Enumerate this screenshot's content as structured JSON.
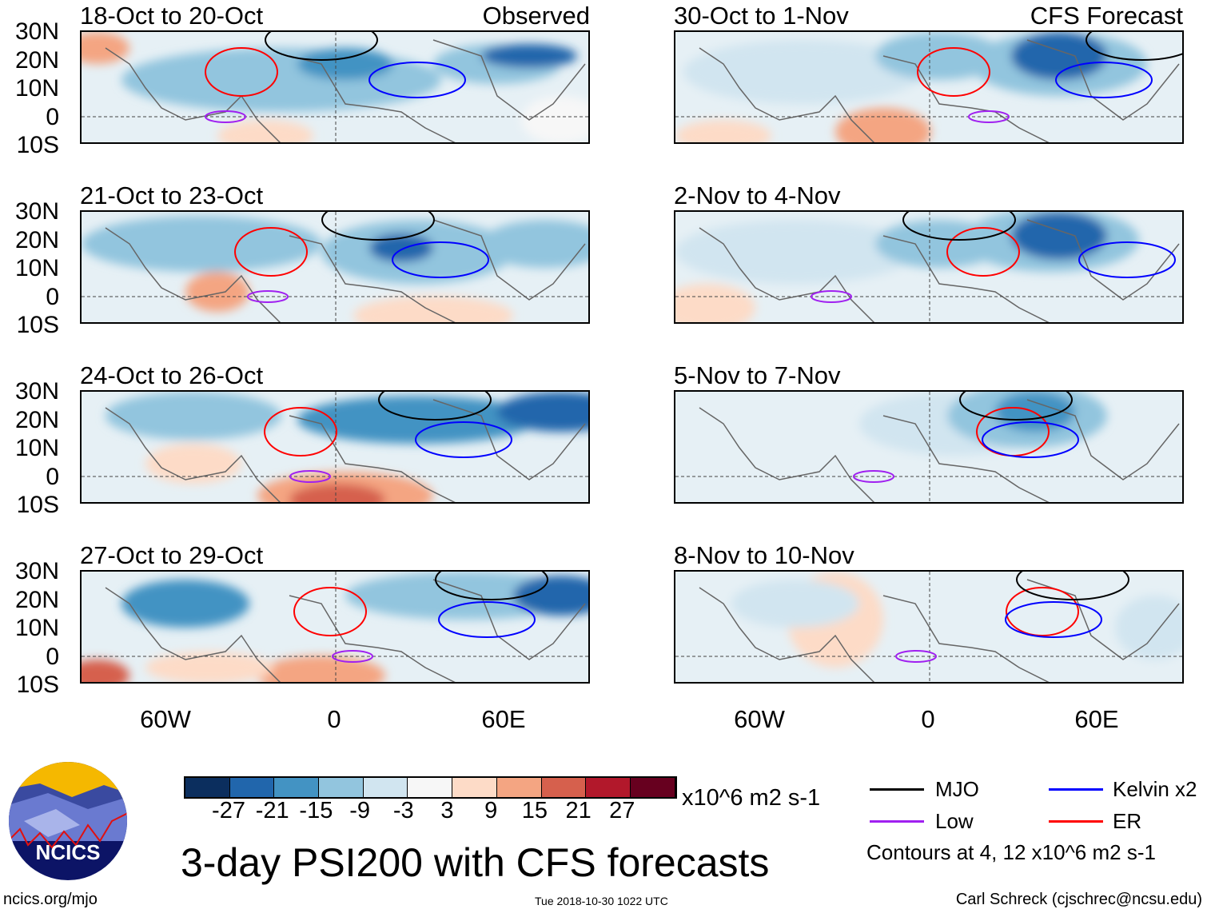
{
  "observed_label": "Observed",
  "forecast_label": "CFS Forecast",
  "panels_left": [
    {
      "title": "18-Oct to 20-Oct"
    },
    {
      "title": "21-Oct to 23-Oct"
    },
    {
      "title": "24-Oct to 26-Oct"
    },
    {
      "title": "27-Oct to 29-Oct"
    }
  ],
  "panels_right": [
    {
      "title": "30-Oct to 1-Nov"
    },
    {
      "title": "2-Nov to 4-Nov"
    },
    {
      "title": "5-Nov to 7-Nov"
    },
    {
      "title": "8-Nov to 10-Nov"
    }
  ],
  "lat_labels": [
    "30N",
    "20N",
    "10N",
    "0",
    "10S"
  ],
  "lon_labels": [
    "60W",
    "0",
    "60E"
  ],
  "colorbar": {
    "colors": [
      "#0b2e5e",
      "#2166ac",
      "#4393c3",
      "#92c5de",
      "#d1e5f0",
      "#f7f7f7",
      "#fddbc7",
      "#f4a582",
      "#d6604d",
      "#b2182b",
      "#67001f"
    ],
    "labels": [
      "-27",
      "-21",
      "-15",
      "-9",
      "-3",
      "3",
      "9",
      "15",
      "21",
      "27"
    ],
    "units": "x10^6 m2 s-1"
  },
  "legend": {
    "items": [
      {
        "label": "MJO",
        "color": "#000000"
      },
      {
        "label": "Kelvin x2",
        "color": "#0000ff"
      },
      {
        "label": "Low",
        "color": "#a020f0"
      },
      {
        "label": "ER",
        "color": "#ff0000"
      }
    ],
    "note": "Contours at 4, 12 x10^6 m2 s-1"
  },
  "title": "3-day PSI200 with CFS forecasts",
  "logo_text": "NCICS",
  "footer": {
    "url": "ncics.org/mjo",
    "timestamp": "Tue 2018-10-30 1022 UTC",
    "author": "Carl Schreck (cjschrec@ncsu.edu)"
  }
}
